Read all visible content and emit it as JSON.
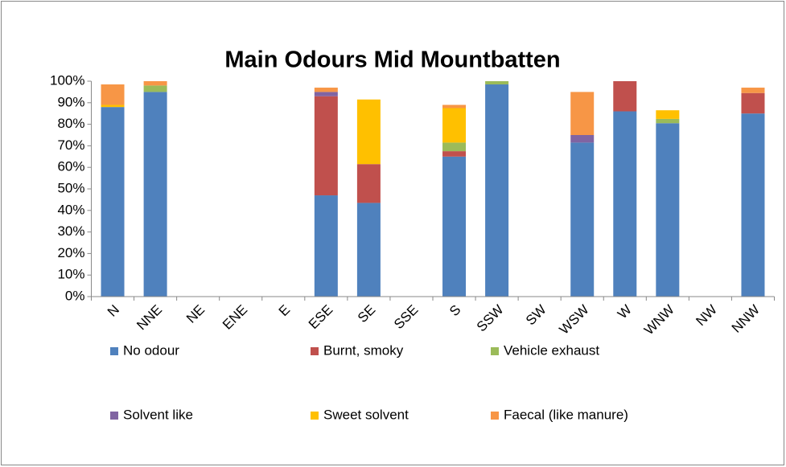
{
  "chart_data": {
    "type": "stacked_bar",
    "title": "Main Odours Mid Mountbatten",
    "categories": [
      "N",
      "NNE",
      "NE",
      "ENE",
      "E",
      "ESE",
      "SE",
      "SSE",
      "S",
      "SSW",
      "SW",
      "WSW",
      "W",
      "WNW",
      "NW",
      "NNW"
    ],
    "series": [
      {
        "name": "No odour",
        "color": "#4f81bd",
        "values": [
          88,
          95,
          0,
          0,
          0,
          47,
          43.5,
          0,
          65,
          98.5,
          0,
          71.5,
          86,
          80.5,
          0,
          85
        ]
      },
      {
        "name": "Burnt, smoky",
        "color": "#c0504d",
        "values": [
          0,
          0,
          0,
          0,
          0,
          46,
          18,
          0,
          2.5,
          0,
          0,
          0,
          14,
          0,
          0,
          9.5
        ]
      },
      {
        "name": "Vehicle exhaust",
        "color": "#9bbb59",
        "values": [
          0,
          3,
          0,
          0,
          0,
          0,
          0,
          0,
          4,
          1.5,
          0,
          0,
          0,
          2,
          0,
          0
        ]
      },
      {
        "name": "Solvent like",
        "color": "#8064a2",
        "values": [
          0,
          0,
          0,
          0,
          0,
          2,
          0,
          0,
          0,
          0,
          0,
          3.5,
          0,
          0,
          0,
          0
        ]
      },
      {
        "name": "Sweet solvent",
        "color": "#ffc000",
        "values": [
          1,
          0,
          0,
          0,
          0,
          0,
          30,
          0,
          16,
          0,
          0,
          0,
          0,
          4,
          0,
          0
        ]
      },
      {
        "name": "Faecal (like manure)",
        "color": "#f79646",
        "values": [
          9.5,
          2,
          0,
          0,
          0,
          2,
          0,
          0,
          1.5,
          0,
          0,
          20,
          0,
          0,
          0,
          2.5
        ]
      }
    ],
    "ylim": [
      0,
      100
    ],
    "yticks": [
      {
        "value": 0,
        "label": "0%"
      },
      {
        "value": 10,
        "label": "10%"
      },
      {
        "value": 20,
        "label": "20%"
      },
      {
        "value": 30,
        "label": "30%"
      },
      {
        "value": 40,
        "label": "40%"
      },
      {
        "value": 50,
        "label": "50%"
      },
      {
        "value": 60,
        "label": "60%"
      },
      {
        "value": 70,
        "label": "70%"
      },
      {
        "value": 80,
        "label": "80%"
      },
      {
        "value": 90,
        "label": "90%"
      },
      {
        "value": 100,
        "label": "100%"
      }
    ],
    "grid": false,
    "legend": "bottom"
  }
}
